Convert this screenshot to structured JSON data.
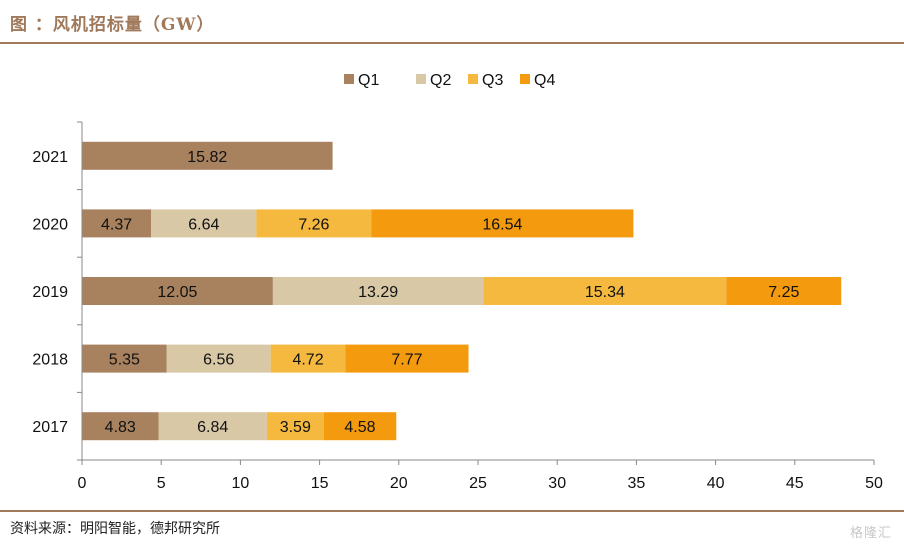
{
  "header": {
    "title": "图  ：风机招标量（GW）"
  },
  "footer": {
    "source": "资料来源：明阳智能，德邦研究所",
    "watermark": "格隆汇"
  },
  "colors": {
    "accent": "#a0785a",
    "Q1": "#a8825e",
    "Q2": "#d9c8a6",
    "Q3": "#f4b93e",
    "Q4": "#f39a0e"
  },
  "chart_data": {
    "type": "bar",
    "orientation": "horizontal",
    "stacked": true,
    "categories": [
      "2021",
      "2020",
      "2019",
      "2018",
      "2017"
    ],
    "series": [
      {
        "name": "Q1",
        "values": [
          15.82,
          4.37,
          12.05,
          5.35,
          4.83
        ]
      },
      {
        "name": "Q2",
        "values": [
          null,
          6.64,
          13.29,
          6.56,
          6.84
        ]
      },
      {
        "name": "Q3",
        "values": [
          null,
          7.26,
          15.34,
          4.72,
          3.59
        ]
      },
      {
        "name": "Q4",
        "values": [
          null,
          16.54,
          7.25,
          7.77,
          4.58
        ]
      }
    ],
    "title": "风机招标量（GW）",
    "xlim": [
      0,
      50
    ],
    "xticks": [
      0,
      5,
      10,
      15,
      20,
      25,
      30,
      35,
      40,
      45,
      50
    ],
    "legend_position": "top-center",
    "grid": false
  }
}
